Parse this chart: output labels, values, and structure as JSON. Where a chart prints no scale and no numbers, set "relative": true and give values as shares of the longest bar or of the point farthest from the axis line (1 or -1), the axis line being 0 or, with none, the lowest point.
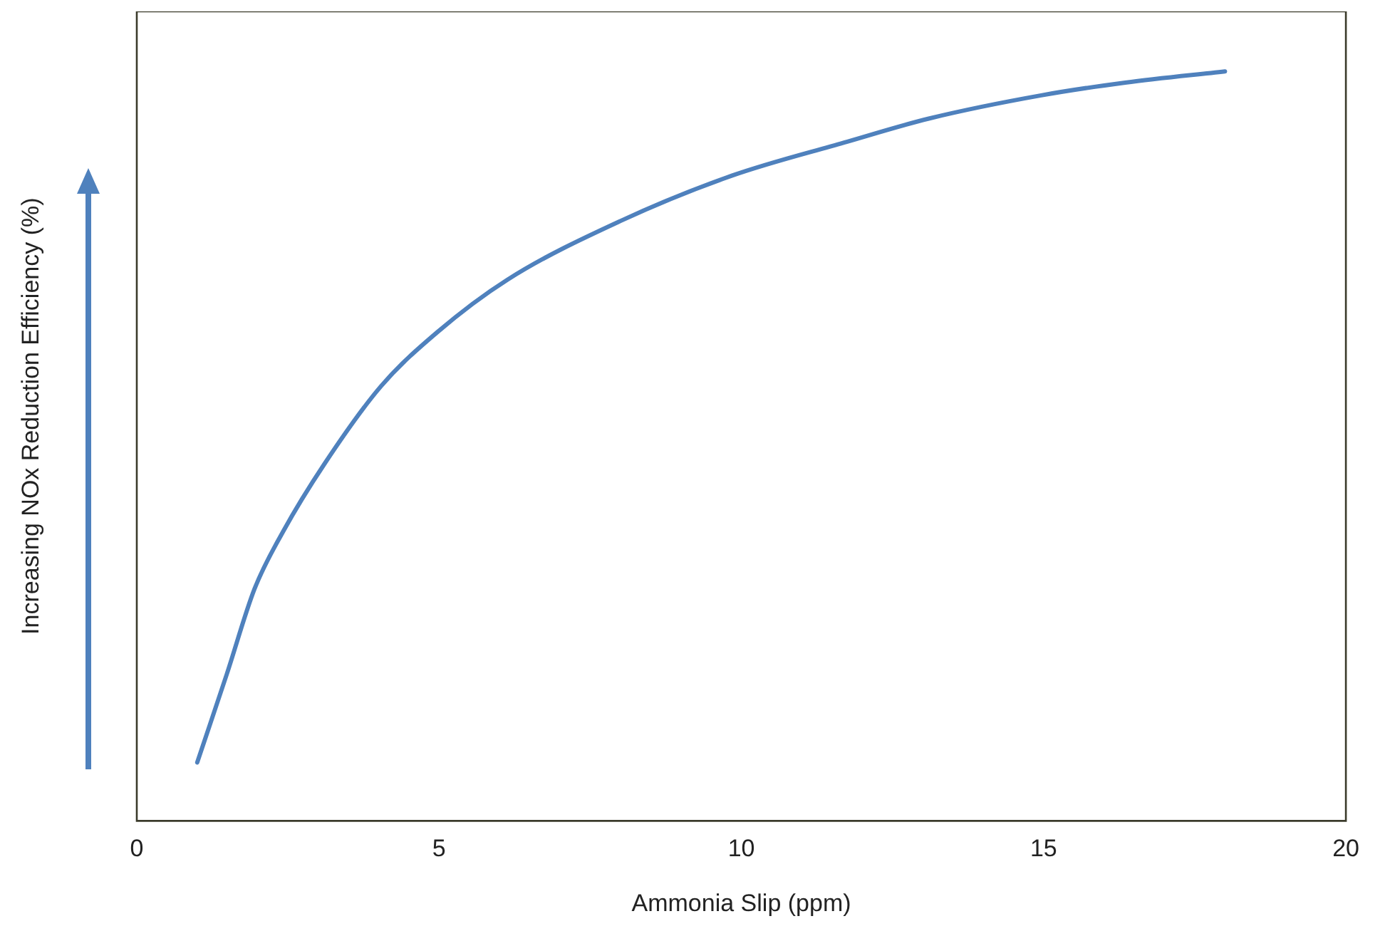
{
  "chart_data": {
    "type": "line",
    "relative": true,
    "xlabel": "Ammonia Slip (ppm)",
    "ylabel": "Increasing NOx Reduction Efficiency (%)",
    "xlim": [
      0,
      20
    ],
    "xticks": [
      0,
      5,
      10,
      15,
      20
    ],
    "grid": false,
    "legend": false,
    "marker": "none",
    "line_style": "solid",
    "series": [
      {
        "color": "#4f81bd",
        "x": [
          1,
          1.49,
          1.95,
          2.42,
          3.11,
          4.04,
          4.97,
          6.13,
          7.99,
          9.85,
          11.7,
          13.1,
          14.96,
          16.35,
          18
        ],
        "values": [
          0.078,
          0.196,
          0.31,
          0.386,
          0.477,
          0.58,
          0.652,
          0.722,
          0.8,
          0.861,
          0.905,
          0.937,
          0.968,
          0.985,
          1
        ]
      }
    ]
  }
}
